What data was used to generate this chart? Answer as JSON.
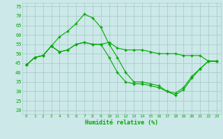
{
  "xlabel": "Humidité relative (%)",
  "background_color": "#cce8e8",
  "grid_color": "#aacccc",
  "line_color": "#00aa00",
  "xlim": [
    -0.5,
    23.5
  ],
  "ylim": [
    18,
    77
  ],
  "yticks": [
    20,
    25,
    30,
    35,
    40,
    45,
    50,
    55,
    60,
    65,
    70,
    75
  ],
  "xticks": [
    0,
    1,
    2,
    3,
    4,
    5,
    6,
    7,
    8,
    9,
    10,
    11,
    12,
    13,
    14,
    15,
    16,
    17,
    18,
    19,
    20,
    21,
    22,
    23
  ],
  "series": [
    [
      44,
      48,
      49,
      54,
      51,
      52,
      55,
      56,
      55,
      55,
      56,
      53,
      52,
      52,
      52,
      51,
      50,
      50,
      50,
      49,
      49,
      49,
      46,
      46
    ],
    [
      44,
      48,
      49,
      54,
      59,
      62,
      66,
      71,
      69,
      64,
      55,
      48,
      40,
      35,
      35,
      34,
      33,
      30,
      28,
      31,
      37,
      42,
      46,
      46
    ],
    [
      44,
      48,
      49,
      54,
      51,
      52,
      55,
      56,
      55,
      55,
      48,
      40,
      35,
      34,
      34,
      33,
      32,
      30,
      29,
      32,
      38,
      42,
      46,
      46
    ]
  ]
}
